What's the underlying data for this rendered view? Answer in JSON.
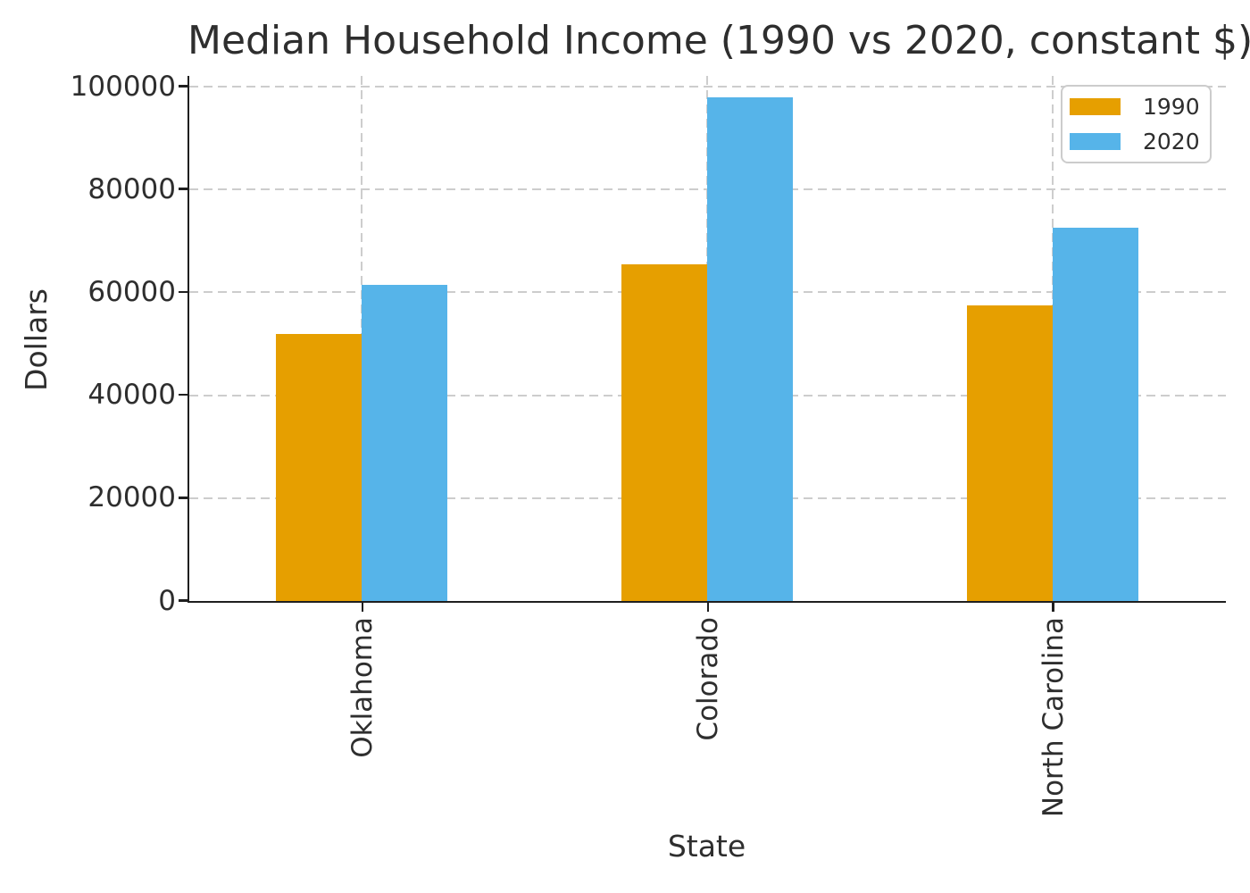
{
  "chart_data": {
    "type": "bar",
    "title": "Median Household Income (1990 vs 2020, constant $)",
    "xlabel": "State",
    "ylabel": "Dollars",
    "categories": [
      "Oklahoma",
      "Colorado",
      "North Carolina"
    ],
    "series": [
      {
        "name": "1990",
        "color": "#E69F00",
        "values": [
          52000,
          65500,
          57500
        ]
      },
      {
        "name": "2020",
        "color": "#56B4E9",
        "values": [
          61500,
          98000,
          72500
        ]
      }
    ],
    "ylim": [
      0,
      102000
    ],
    "yticks": [
      0,
      20000,
      40000,
      60000,
      80000,
      100000
    ],
    "ytick_labels": [
      "0",
      "20000",
      "40000",
      "60000",
      "80000",
      "100000"
    ],
    "grid": true,
    "grid_style": "dashed",
    "legend_position": "upper right",
    "colors": {
      "text": "#2e2e2e",
      "spine": "#1f1f1f",
      "gridline": "#cdcdcd",
      "background": "#ffffff",
      "legend_border": "#cccccc"
    }
  }
}
